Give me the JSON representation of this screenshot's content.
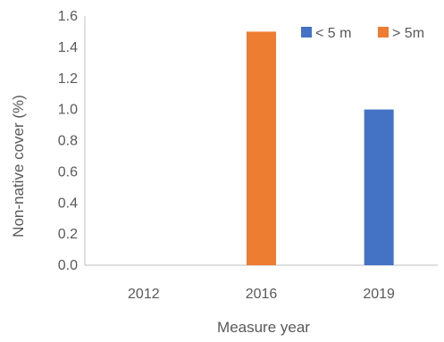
{
  "chart_data": {
    "type": "bar",
    "title": "",
    "xlabel": "Measure year",
    "ylabel": "Non-native cover (%)",
    "categories": [
      "2012",
      "2016",
      "2019"
    ],
    "series": [
      {
        "name": "< 5 m",
        "color": "#4472C4",
        "values": [
          0,
          0,
          1.0
        ]
      },
      {
        "name": "> 5m",
        "color": "#ED7D31",
        "values": [
          0,
          1.5,
          0
        ]
      }
    ],
    "ylim": [
      0,
      1.6
    ],
    "yticks": [
      "0.0",
      "0.2",
      "0.4",
      "0.6",
      "0.8",
      "1.0",
      "1.2",
      "1.4",
      "1.6"
    ],
    "grid": false,
    "legend": "top-right"
  }
}
